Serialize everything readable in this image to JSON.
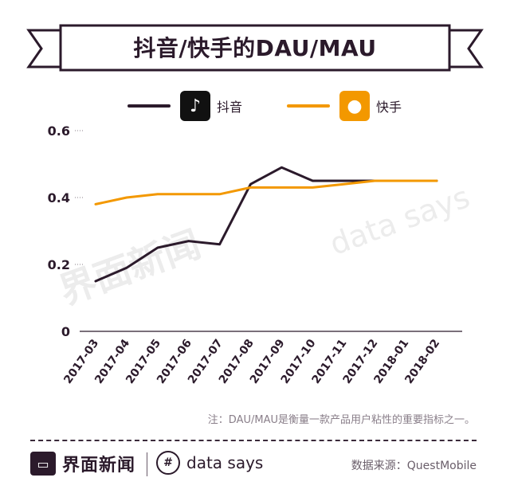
{
  "title": "抖音/快手的DAU/MAU",
  "legend": [
    {
      "label": "抖音",
      "color": "#2b1a2b",
      "icon": "tiktok-icon"
    },
    {
      "label": "快手",
      "color": "#f39800",
      "icon": "kuaishou-icon"
    }
  ],
  "chart_data": {
    "type": "line",
    "x": [
      "2017-03",
      "2017-04",
      "2017-05",
      "2017-06",
      "2017-07",
      "2017-08",
      "2017-09",
      "2017-10",
      "2017-11",
      "2017-12",
      "2018-01",
      "2018-02"
    ],
    "yticks": [
      "0",
      "0.2",
      "0.4",
      "0.6"
    ],
    "ylim": [
      0,
      0.6
    ],
    "grid": false,
    "series": [
      {
        "name": "抖音",
        "color": "#2b1a2b",
        "values": [
          0.15,
          0.19,
          0.25,
          0.27,
          0.26,
          0.44,
          0.49,
          0.45,
          0.45,
          0.45,
          0.45,
          0.45
        ]
      },
      {
        "name": "快手",
        "color": "#f39800",
        "values": [
          0.38,
          0.4,
          0.41,
          0.41,
          0.41,
          0.43,
          0.43,
          0.43,
          0.44,
          0.45,
          0.45,
          0.45
        ]
      }
    ]
  },
  "note": "注：DAU/MAU是衡量一款产品用户粘性的重要指标之一。",
  "footer": {
    "brand": "界面新闻",
    "brand2": "data says",
    "source": "数据来源：QuestMobile"
  },
  "watermark": {
    "brand": "界面新闻",
    "brand2": "data says"
  }
}
